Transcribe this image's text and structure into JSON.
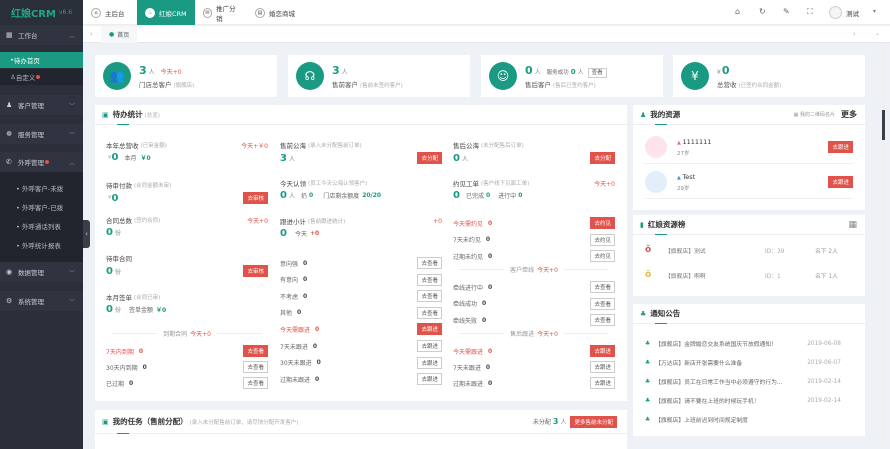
{
  "app": {
    "logo": "红娘CRM",
    "version": "v6.6"
  },
  "sidebar": {
    "groups": [
      {
        "label": "工作台",
        "icon": "workbench-icon",
        "expanded": true
      },
      {
        "label": "客户管理",
        "icon": "customer-icon"
      },
      {
        "label": "服务管理",
        "icon": "service-icon"
      },
      {
        "label": "外呼管理",
        "icon": "phone-icon",
        "expanded": true,
        "badge": true
      },
      {
        "label": "数据管理",
        "icon": "data-icon"
      },
      {
        "label": "系统管理",
        "icon": "settings-icon"
      }
    ],
    "workbench_items": [
      {
        "label": "待办首页",
        "active": true
      },
      {
        "label": "自定义",
        "badge": true
      }
    ],
    "call_items": [
      "外呼客户-未拨",
      "外呼客户-已拨",
      "外呼通话列表",
      "外呼统计报表"
    ]
  },
  "topbar": {
    "tabs": [
      {
        "label": "主后台"
      },
      {
        "label": "红娘CRM",
        "active": true
      },
      {
        "label": "推广分销"
      },
      {
        "label": "婚恋商城"
      }
    ],
    "user": "测试"
  },
  "tabsrow": {
    "current": "首页"
  },
  "stats": [
    {
      "icon": "users-icon",
      "glyph": "👥",
      "value": "3",
      "unit": "人",
      "extra": "今天+0",
      "label": "门店总客户",
      "note": "(旗舰店)"
    },
    {
      "icon": "headset-icon",
      "glyph": "☊",
      "value": "3",
      "unit": "人",
      "label": "售前客户",
      "note": "(售前未签约客户)"
    },
    {
      "icon": "baby-icon",
      "glyph": "☺",
      "value": "0",
      "unit": "人",
      "extra2": "服务成功",
      "extra2_value": "0",
      "extra2_unit": "人",
      "button": "查看",
      "label": "售后客户",
      "note": "(售后已签约客户)"
    },
    {
      "icon": "yen-icon",
      "glyph": "¥",
      "prefix": "¥",
      "value": "0",
      "label": "总营收",
      "note": "(已签约合同金额)"
    }
  ],
  "todo": {
    "title": "待办统计",
    "note": "(总览)",
    "col1": {
      "revenue": {
        "label": "本年总营收",
        "note": "(已审金额)",
        "today": "今天+￥0",
        "value": "0",
        "month_label": "本月",
        "month_value": "￥0"
      },
      "payment": {
        "label": "待审付款",
        "note": "(合同金额未审)",
        "value": "0",
        "button": "去审核"
      },
      "contracts": {
        "label": "合同总数",
        "note": "(签约合同)",
        "today": "今天+0",
        "value": "0",
        "unit": "份"
      },
      "pending": {
        "label": "待审合同",
        "value": "0",
        "unit": "份",
        "button": "去审核"
      },
      "monthly": {
        "label": "本月签单",
        "note": "(合同已审)",
        "value": "0",
        "unit": "份",
        "amount_label": "签单金额",
        "amount": "￥0"
      },
      "expire_title": "到期合同",
      "expire_today": "今天+0",
      "expire_rows": [
        {
          "label": "7天内到期",
          "value": "0",
          "button": "去查看",
          "urgent": true
        },
        {
          "label": "30天内到期",
          "value": "0",
          "button": "去查看"
        },
        {
          "label": "已过期",
          "value": "0",
          "button": "去查看"
        }
      ]
    },
    "col2": {
      "pool": {
        "label": "售前公海",
        "note": "(录入未分配售前订单)",
        "value": "3",
        "unit": "人",
        "button": "去分配"
      },
      "claim": {
        "label": "今天认领",
        "note": "(员工今天公海认领客户)",
        "value": "0",
        "unit": "人",
        "throw_label": "扔",
        "throw_value": "0",
        "quota_label": "门店剩余额度",
        "quota": "20/20"
      },
      "follow": {
        "label": "跟进小计",
        "note": "(售前跟进统计)",
        "value": "0",
        "today_label": "今天",
        "today": "+0"
      },
      "rows": [
        {
          "label": "意向强",
          "value": "0",
          "button": "去查看"
        },
        {
          "label": "有意向",
          "value": "0",
          "button": "去查看"
        },
        {
          "label": "不考虑",
          "value": "0",
          "button": "去查看"
        },
        {
          "label": "其他",
          "value": "0",
          "button": "去查看"
        },
        {
          "label": "今天需跟进",
          "value": "0",
          "button": "去跟进",
          "urgent": true
        },
        {
          "label": "7天未跟进",
          "value": "0",
          "button": "去跟进"
        },
        {
          "label": "30天未跟进",
          "value": "0",
          "button": "去跟进"
        },
        {
          "label": "过期未跟进",
          "value": "0",
          "button": "去跟进"
        }
      ]
    },
    "col3": {
      "pool": {
        "label": "售后公海",
        "note": "(未分配售后订单)",
        "value": "0",
        "unit": "人",
        "button": "去分配"
      },
      "meet": {
        "label": "约见工单",
        "note": "(客户线下见面工单)",
        "today": "今天+0",
        "value": "0",
        "done_label": "已完成",
        "done": "0",
        "doing_label": "进行中",
        "doing": "0"
      },
      "meet_rows": [
        {
          "label": "今天需约见",
          "value": "0",
          "button": "去约见",
          "urgent": true
        },
        {
          "label": "7天未约见",
          "value": "0",
          "button": "去约见"
        },
        {
          "label": "过期未约见",
          "value": "0",
          "button": "去约见"
        }
      ],
      "match_title": "客户牵线",
      "match_today": "今天+0",
      "match_rows": [
        {
          "label": "牵线进行中",
          "value": "0",
          "button": "去查看"
        },
        {
          "label": "牵线成功",
          "value": "0",
          "button": "去查看"
        },
        {
          "label": "牵线失败",
          "value": "0",
          "button": "去查看"
        }
      ],
      "after_title": "售后跟进",
      "after_today": "今天+0",
      "after_rows": [
        {
          "label": "今天需跟进",
          "value": "0",
          "button": "去跟进",
          "urgent": true
        },
        {
          "label": "7天未跟进",
          "value": "0",
          "button": "去跟进"
        },
        {
          "label": "过期未跟进",
          "value": "0",
          "button": "去跟进"
        }
      ]
    }
  },
  "tasks": {
    "title": "我的任务（售前分配）",
    "note": "(录入未分配售前订单，请尽快分配开发客户)",
    "unassigned_label": "未分配",
    "unassigned": "3",
    "unit": "人",
    "button": "更多售前未分配"
  },
  "resources": {
    "title": "我的资源",
    "qr_label": "我的二维码名片",
    "more": "更多",
    "items": [
      {
        "name": "1111111",
        "age": "27岁",
        "gender": "female",
        "button": "去跟进"
      },
      {
        "name": "Test",
        "age": "29岁",
        "gender": "male",
        "button": "去跟进"
      }
    ]
  },
  "ranking": {
    "title": "红娘资源榜",
    "items": [
      {
        "name": "【旗舰店】测试",
        "id": "ID：39",
        "count": "名下 2人",
        "medal": "#d9534f"
      },
      {
        "name": "【旗舰店】啊啊",
        "id": "ID：1",
        "count": "名下 1人",
        "medal": "#e6b84a"
      }
    ]
  },
  "notices": {
    "title": "通知公告",
    "items": [
      {
        "text": "【旗舰店】金牌婚恋交友系统国庆节放假通知！",
        "date": "2019-06-08"
      },
      {
        "text": "【万达店】新店开张需要什么准备",
        "date": "2019-06-07"
      },
      {
        "text": "【旗舰店】员工在日常工作当中必须遵守的行为...",
        "date": "2019-02-14"
      },
      {
        "text": "【旗舰店】请不要在上班的时候玩手机！",
        "date": "2019-02-14"
      },
      {
        "text": "【旗舰店】上班前迟到时间规定制度",
        "date": ""
      }
    ]
  },
  "colors": {
    "accent": "#1a9a82",
    "danger": "#e0534a",
    "sidebar": "#2b2f3a"
  }
}
